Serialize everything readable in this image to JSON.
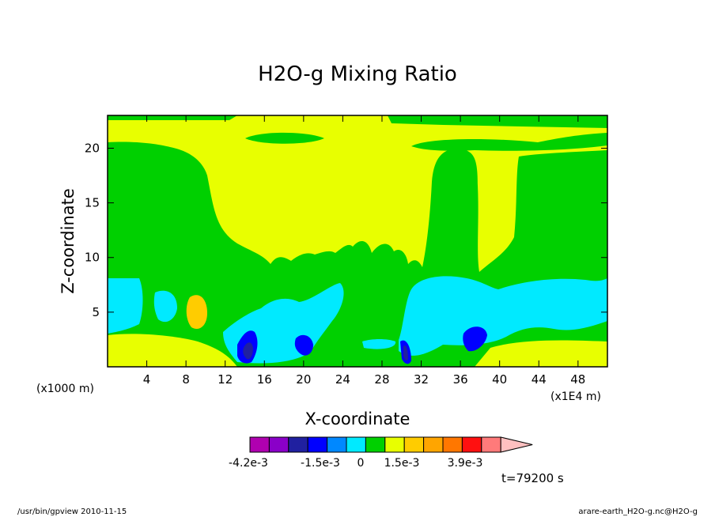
{
  "chart_data": {
    "type": "contour",
    "title": "H2O-g Mixing Ratio",
    "xlabel": "X-coordinate",
    "ylabel": "Z-coordinate",
    "x_unit_left": "(x1000 m)",
    "x_unit_right": "(x1E4 m)",
    "xlim": [
      0,
      51
    ],
    "ylim": [
      0,
      23
    ],
    "x_ticks": [
      4,
      8,
      12,
      16,
      20,
      24,
      28,
      32,
      36,
      40,
      44,
      48
    ],
    "y_ticks": [
      5,
      10,
      15,
      20
    ],
    "colorbar": {
      "colors": [
        "#b000b0",
        "#8a00c8",
        "#2020a0",
        "#0000ff",
        "#0088ff",
        "#00eaff",
        "#00d000",
        "#e8ff00",
        "#ffcc00",
        "#ffa500",
        "#ff7700",
        "#ff1010",
        "#ff7a7a",
        "#ffc0c0"
      ],
      "labels": [
        "-4.2e-3",
        "-1.5e-3",
        "0",
        "1.5e-3",
        "3.9e-3"
      ]
    },
    "time_label": "t=79200 s"
  },
  "footer": {
    "left": "/usr/bin/gpview 2010-11-15",
    "right": "arare-earth_H2O-g.nc@H2O-g"
  }
}
